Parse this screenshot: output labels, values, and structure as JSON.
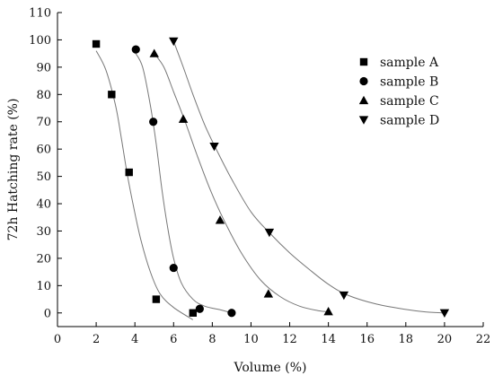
{
  "chart_data": {
    "type": "scatter",
    "xlabel": "Volume (%)",
    "ylabel": "72h Hatching rate (%)",
    "xlim": [
      0,
      22
    ],
    "ylim": [
      -5,
      110
    ],
    "x_ticks": [
      0,
      2,
      4,
      6,
      8,
      10,
      12,
      14,
      16,
      18,
      20,
      22
    ],
    "y_ticks": [
      0,
      10,
      20,
      30,
      40,
      50,
      60,
      70,
      80,
      90,
      100,
      110
    ],
    "legend_position": "top-right",
    "fitted_curves": true,
    "series": [
      {
        "name": "sample A",
        "marker": "square",
        "points": [
          [
            2,
            98.5
          ],
          [
            2.8,
            80
          ],
          [
            3.7,
            51.5
          ],
          [
            5.1,
            5
          ],
          [
            7,
            0
          ]
        ],
        "curve": [
          [
            2,
            96
          ],
          [
            2.5,
            89
          ],
          [
            3,
            76
          ],
          [
            3.3,
            64
          ],
          [
            3.6,
            51
          ],
          [
            3.9,
            40
          ],
          [
            4.3,
            27
          ],
          [
            4.8,
            15
          ],
          [
            5.3,
            7
          ],
          [
            6,
            2
          ],
          [
            7,
            -2.5
          ]
        ]
      },
      {
        "name": "sample B",
        "marker": "circle",
        "points": [
          [
            4.05,
            96.5
          ],
          [
            4.95,
            70
          ],
          [
            6,
            16.5
          ],
          [
            7.35,
            1.5
          ],
          [
            9,
            0
          ]
        ],
        "curve": [
          [
            4,
            95.5
          ],
          [
            4.4,
            90
          ],
          [
            4.8,
            76
          ],
          [
            5.1,
            62
          ],
          [
            5.4,
            45
          ],
          [
            5.7,
            31
          ],
          [
            6,
            20
          ],
          [
            6.4,
            11
          ],
          [
            7,
            5
          ],
          [
            7.6,
            2.5
          ],
          [
            8.5,
            1
          ],
          [
            9,
            0
          ]
        ]
      },
      {
        "name": "sample C",
        "marker": "triangle-up",
        "points": [
          [
            5,
            95
          ],
          [
            6.5,
            71
          ],
          [
            8.4,
            34
          ],
          [
            10.9,
            7
          ],
          [
            14,
            0.5
          ]
        ],
        "curve": [
          [
            5,
            95
          ],
          [
            5.5,
            90
          ],
          [
            6,
            81
          ],
          [
            6.6,
            70
          ],
          [
            7.2,
            58
          ],
          [
            7.9,
            45
          ],
          [
            8.6,
            34
          ],
          [
            9.5,
            22
          ],
          [
            10.5,
            12
          ],
          [
            11.5,
            6
          ],
          [
            12.5,
            2.5
          ],
          [
            13.5,
            0.8
          ],
          [
            14,
            0.5
          ]
        ]
      },
      {
        "name": "sample D",
        "marker": "triangle-down",
        "points": [
          [
            6,
            99.5
          ],
          [
            8.1,
            61
          ],
          [
            10.95,
            29.5
          ],
          [
            14.8,
            6.5
          ],
          [
            20,
            0
          ]
        ],
        "curve": [
          [
            6,
            99.5
          ],
          [
            6.5,
            90
          ],
          [
            7,
            80
          ],
          [
            7.6,
            69
          ],
          [
            8.2,
            60
          ],
          [
            9,
            49
          ],
          [
            10,
            37
          ],
          [
            11,
            29
          ],
          [
            12,
            22
          ],
          [
            13,
            16
          ],
          [
            14,
            10.5
          ],
          [
            15,
            6.5
          ],
          [
            16.5,
            3.2
          ],
          [
            18,
            1.3
          ],
          [
            19,
            0.4
          ],
          [
            20,
            0
          ]
        ]
      }
    ]
  }
}
